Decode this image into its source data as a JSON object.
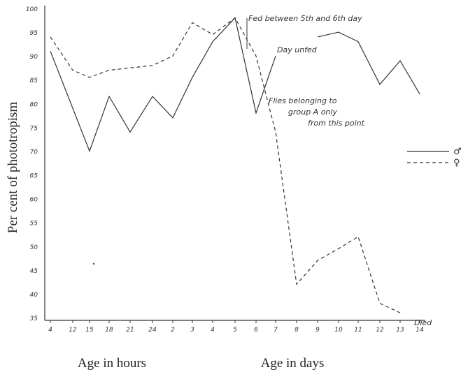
{
  "chart_data": {
    "type": "line",
    "ylabel": "Per cent of phototropism",
    "xlabel_hours": "Age in hours",
    "xlabel_days": "Age in days",
    "ylim": [
      35,
      100
    ],
    "yticks": [
      "35",
      "40",
      "45",
      "50",
      "55",
      "60",
      "65",
      "70",
      "75",
      "80",
      "85",
      "90",
      "95",
      "100"
    ],
    "x_categories": [
      "4",
      "12",
      "15",
      "18",
      "21",
      "24",
      "2",
      "3",
      "4",
      "5",
      "6",
      "7",
      "8",
      "9",
      "10",
      "11",
      "12",
      "13",
      "14"
    ],
    "series": [
      {
        "name": "♂",
        "style": "solid",
        "color": "#333333",
        "segments": [
          [
            [
              0,
              91
            ],
            [
              2,
              70
            ],
            [
              3,
              81.5
            ],
            [
              4,
              74
            ],
            [
              5,
              81.5
            ],
            [
              6,
              77
            ],
            [
              7,
              85.5
            ],
            [
              8,
              93
            ],
            [
              9,
              98
            ],
            [
              10,
              78
            ],
            [
              11,
              90
            ]
          ],
          [
            [
              13,
              94
            ],
            [
              14,
              95
            ],
            [
              15,
              93
            ],
            [
              16,
              84
            ],
            [
              17,
              89
            ],
            [
              18,
              82
            ]
          ]
        ]
      },
      {
        "name": "♀",
        "style": "dashed",
        "color": "#333333",
        "segments": [
          [
            [
              0,
              94
            ],
            [
              1,
              87
            ],
            [
              2,
              85.5
            ],
            [
              3,
              87
            ],
            [
              5,
              88
            ],
            [
              6,
              90
            ],
            [
              7,
              97
            ],
            [
              8,
              94.5
            ],
            [
              9,
              98
            ],
            [
              10,
              90
            ],
            [
              11,
              74
            ],
            [
              12,
              42
            ],
            [
              13,
              47
            ],
            [
              14,
              49.5
            ],
            [
              15,
              52
            ],
            [
              16,
              38
            ],
            [
              17,
              36
            ]
          ]
        ]
      }
    ],
    "annotations": {
      "fed": "Fed between 5th and 6th day",
      "day": "Day unfed",
      "flies": [
        "Flies belonging to",
        "group A only",
        "from this point"
      ],
      "died": "Died"
    },
    "legend": {
      "position": "right"
    }
  }
}
